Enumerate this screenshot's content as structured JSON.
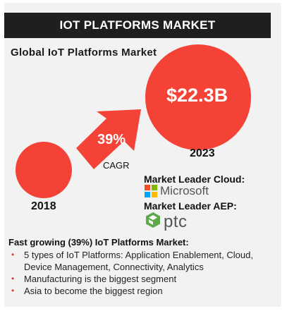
{
  "header": {
    "title": "IOT PLATFORMS MARKET"
  },
  "subtitle": "Global  IoT Platforms  Market",
  "chart_data": {
    "type": "bubble",
    "points": [
      {
        "year": "2018",
        "value": null,
        "value_label": ""
      },
      {
        "year": "2023",
        "value": 22.3,
        "value_label": "$22.3B"
      }
    ],
    "growth": {
      "rate": "39%",
      "label": "CAGR"
    },
    "colors": {
      "bubble": "#f44336",
      "arrow": "#f44336"
    }
  },
  "leaders": {
    "cloud_label": "Market Leader Cloud:",
    "cloud_company": "Microsoft",
    "aep_label": "Market Leader AEP:",
    "aep_company": "ptc"
  },
  "summary": {
    "title": "Fast growing (39%) IoT Platforms Market:",
    "bullets": [
      "5 types of IoT Platforms: Application Enablement, Cloud, Device Management, Connectivity, Analytics",
      "Manufacturing is the biggest segment",
      "Asia to become the biggest region"
    ]
  },
  "icons": {
    "cloud_logo": "microsoft-logo-icon",
    "aep_logo": "ptc-logo-icon"
  }
}
